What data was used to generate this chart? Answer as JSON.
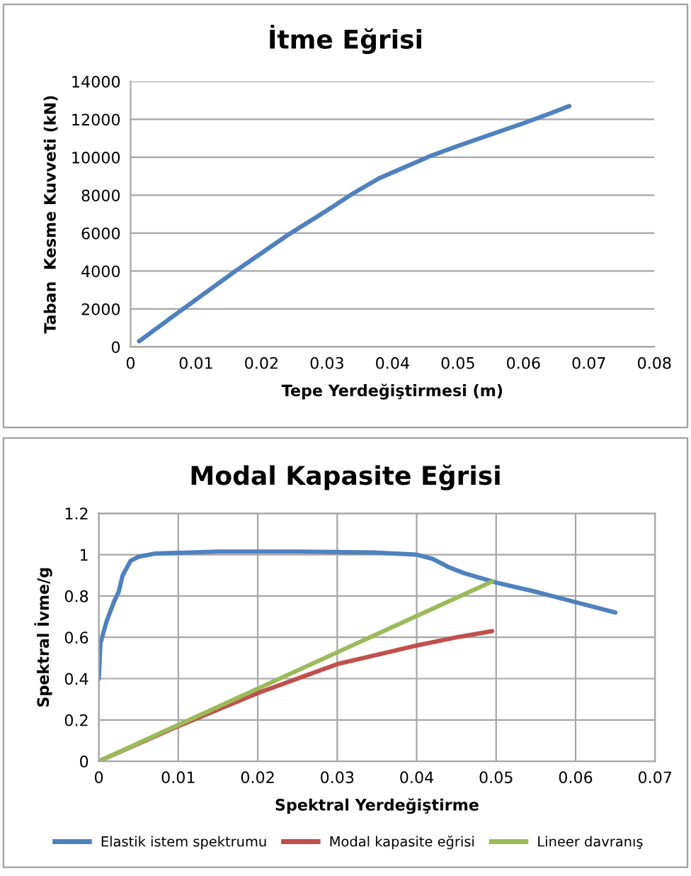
{
  "chart_data": [
    {
      "type": "line",
      "title": "İtme Eğrisi",
      "xlabel": "Tepe Yerdeğiştirmesi (m)",
      "ylabel": "Taban  Kesme Kuvveti (kN)",
      "x": [
        0.0013,
        0.008,
        0.016,
        0.024,
        0.03,
        0.034,
        0.038,
        0.042,
        0.046,
        0.05,
        0.055,
        0.06,
        0.064,
        0.067
      ],
      "series": [
        {
          "color": "#4f81bd",
          "values": [
            300,
            2000,
            4000,
            5900,
            7200,
            8100,
            8900,
            9500,
            10100,
            10600,
            11200,
            11800,
            12300,
            12700
          ]
        }
      ],
      "xlim": [
        0,
        0.08
      ],
      "xticks": [
        0,
        0.01,
        0.02,
        0.03,
        0.04,
        0.05,
        0.06,
        0.07,
        0.08
      ],
      "ylim": [
        0,
        14000
      ],
      "yticks": [
        0,
        2000,
        4000,
        6000,
        8000,
        10000,
        12000,
        14000
      ],
      "grid": "y",
      "legend": false
    },
    {
      "type": "line",
      "title": "Modal Kapasite Eğrisi",
      "xlabel": "Spektral Yerdeğiştirme",
      "ylabel": "Spektral İvme/g",
      "series": [
        {
          "name": "Elastik istem spektrumu",
          "color": "#4f81bd",
          "x": [
            0,
            0.0002,
            0.001,
            0.002,
            0.0025,
            0.003,
            0.004,
            0.005,
            0.007,
            0.015,
            0.025,
            0.035,
            0.04,
            0.042,
            0.044,
            0.046,
            0.05,
            0.055,
            0.06,
            0.065
          ],
          "values": [
            0.4,
            0.57,
            0.68,
            0.78,
            0.82,
            0.9,
            0.97,
            0.99,
            1.005,
            1.015,
            1.015,
            1.01,
            1.0,
            0.98,
            0.94,
            0.91,
            0.865,
            0.82,
            0.77,
            0.72
          ]
        },
        {
          "name": "Modal kapasite eğrisi",
          "color": "#c0504d",
          "x": [
            0,
            0.01,
            0.02,
            0.03,
            0.04,
            0.045,
            0.0495
          ],
          "values": [
            0,
            0.17,
            0.33,
            0.47,
            0.56,
            0.6,
            0.63
          ]
        },
        {
          "name": "Lineer davranış",
          "color": "#9bbb59",
          "x": [
            0,
            0.0495
          ],
          "values": [
            0,
            0.87
          ]
        }
      ],
      "xlim": [
        0,
        0.07
      ],
      "xticks": [
        0,
        0.01,
        0.02,
        0.03,
        0.04,
        0.05,
        0.06,
        0.07
      ],
      "ylim": [
        0,
        1.2
      ],
      "yticks": [
        0,
        0.2,
        0.4,
        0.6,
        0.8,
        1,
        1.2
      ],
      "grid": true,
      "legend": "bottom"
    }
  ]
}
